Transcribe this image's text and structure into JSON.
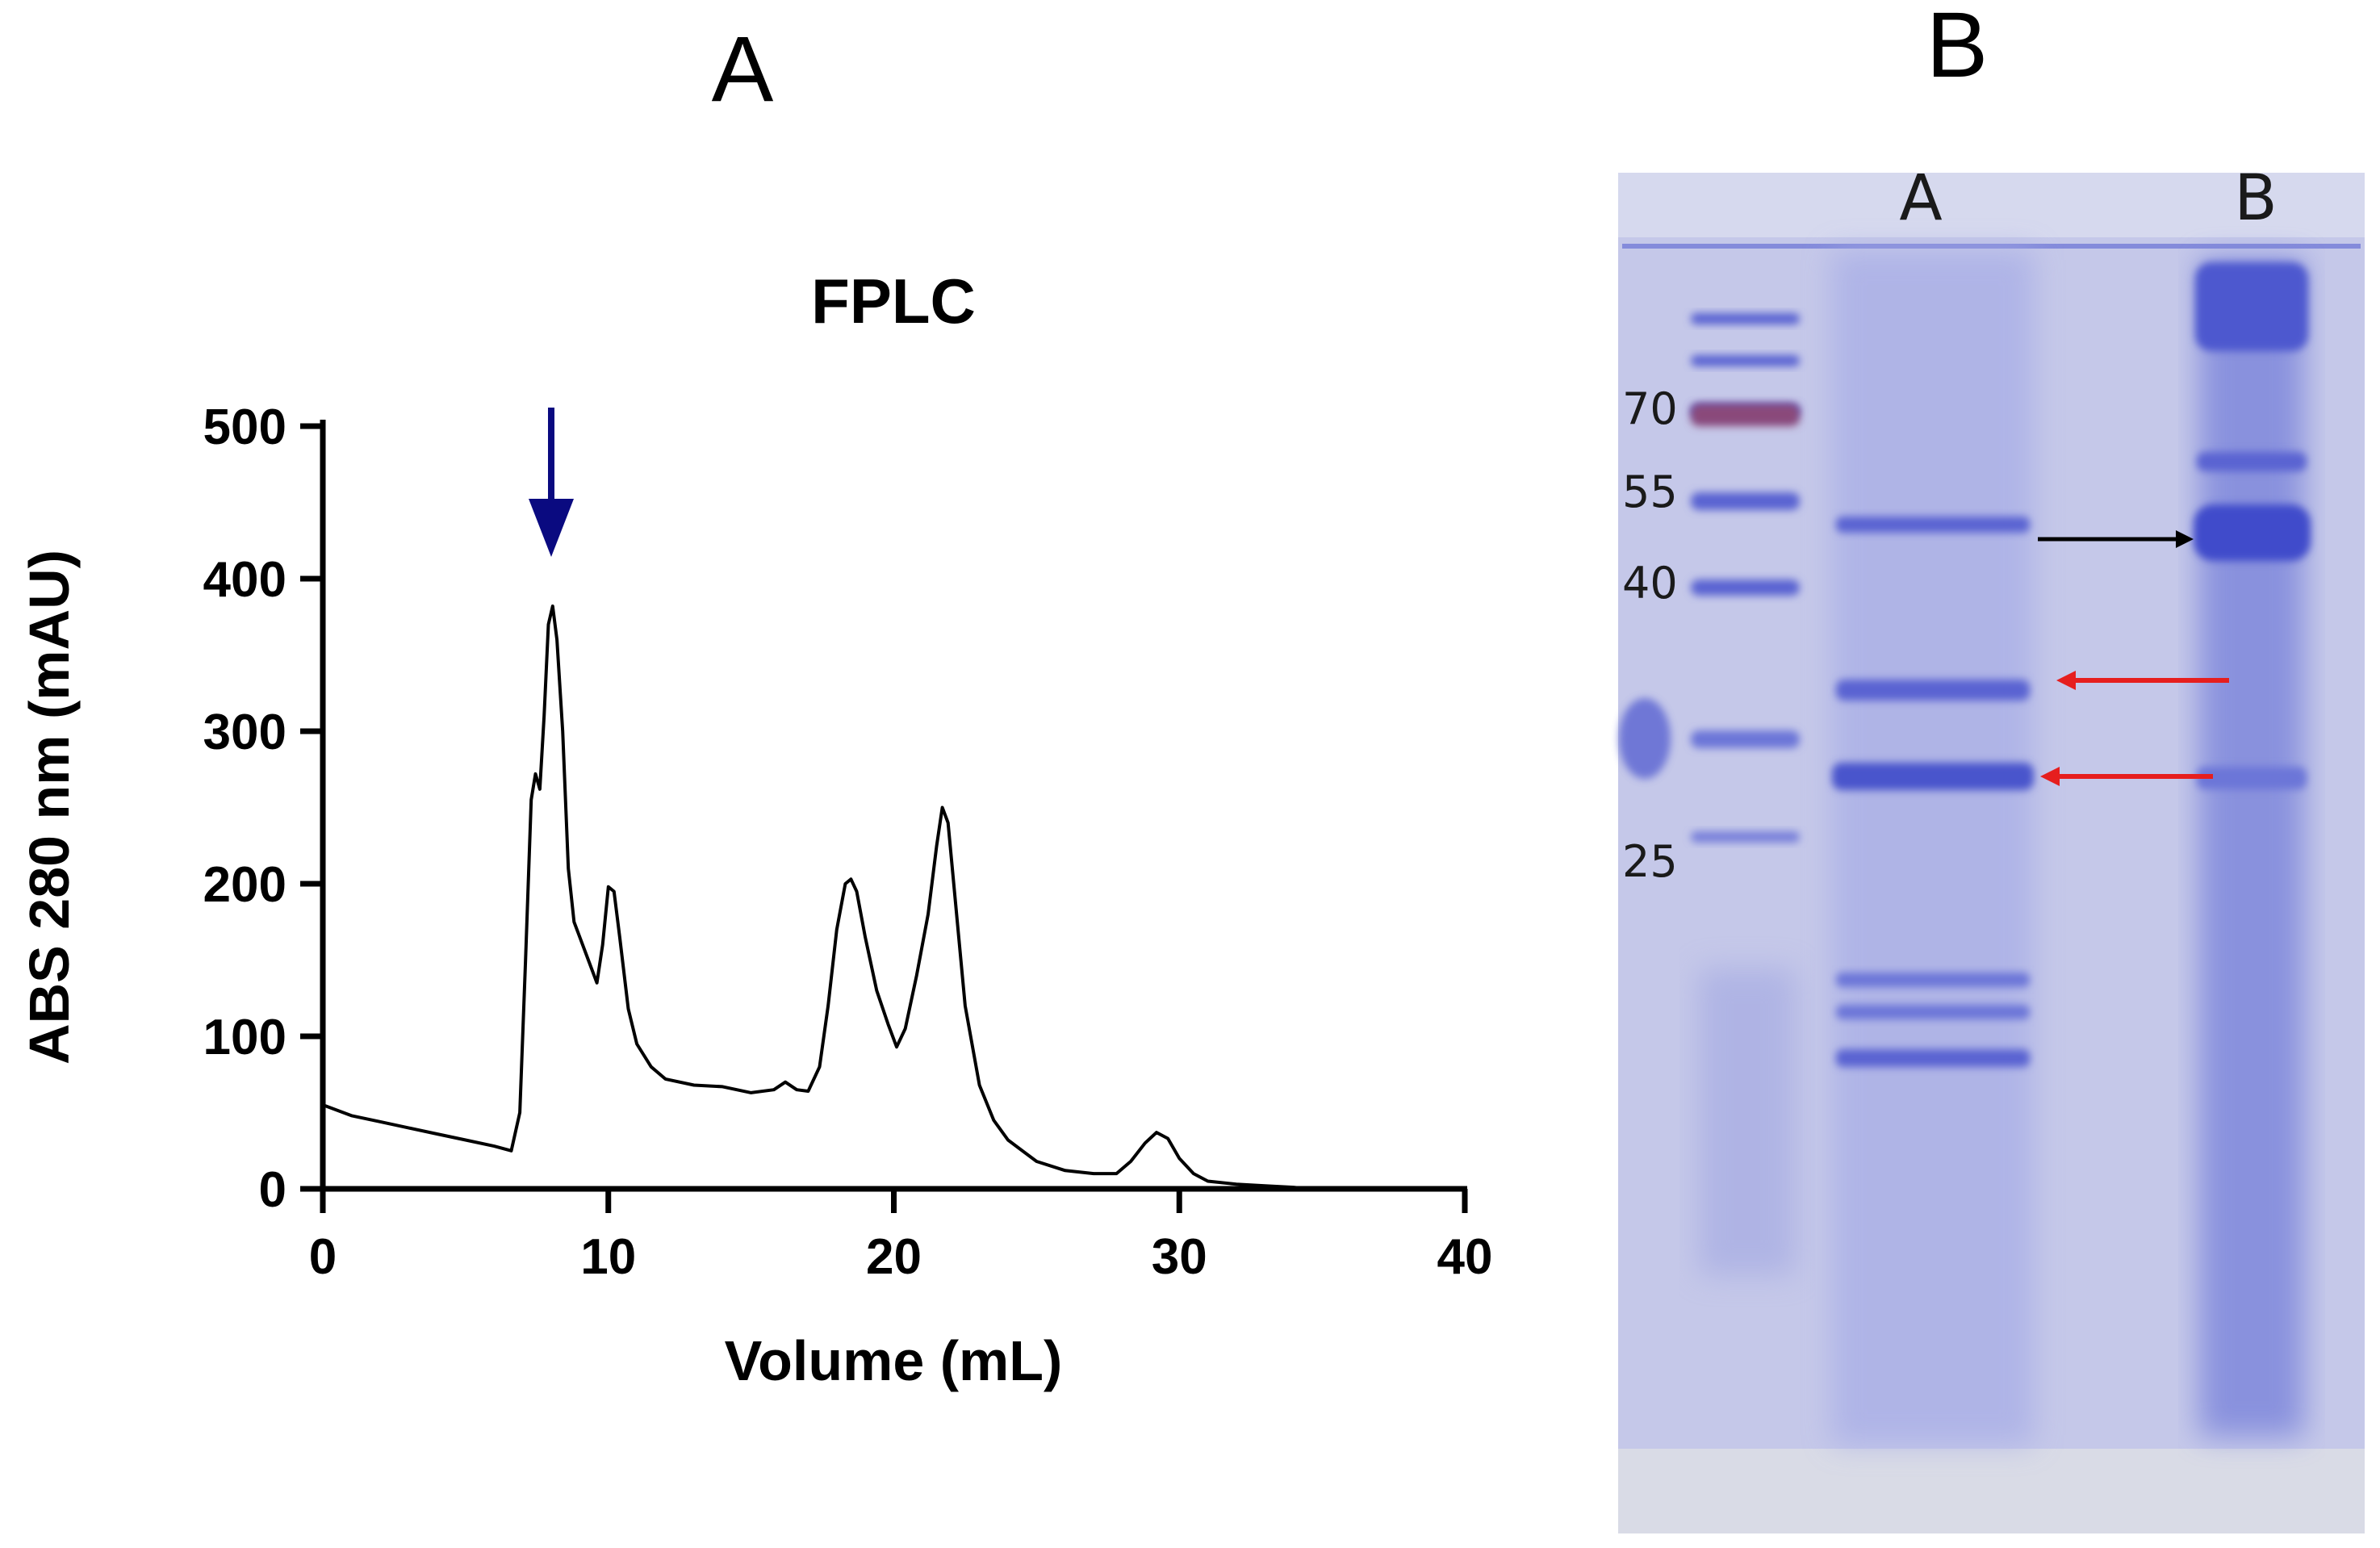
{
  "panel_a": {
    "letter": "A"
  },
  "panel_b": {
    "letter": "B",
    "lane_labels": [
      "A",
      "B"
    ],
    "marker_labels": [
      "70",
      "55",
      "40",
      "25"
    ],
    "colors": {
      "gel_background": "#c5c8e9",
      "band": "#5a64d2",
      "marker_70": "#8a4a7a",
      "black_arrow": "#000000",
      "red_arrow": "#e61e1e"
    }
  },
  "chart_data": {
    "type": "line",
    "title": "FPLC",
    "xlabel": "Volume (mL)",
    "ylabel": "ABS 280 nm (mAU)",
    "xlim": [
      0,
      40
    ],
    "ylim": [
      0,
      500
    ],
    "xticks": [
      0,
      10,
      20,
      30,
      40
    ],
    "yticks": [
      0,
      100,
      200,
      300,
      400,
      500
    ],
    "grid": false,
    "series": [
      {
        "color": "#000000",
        "points": [
          [
            0,
            55
          ],
          [
            1,
            48
          ],
          [
            2,
            44
          ],
          [
            3,
            40
          ],
          [
            4,
            36
          ],
          [
            5,
            32
          ],
          [
            6,
            28
          ],
          [
            6.6,
            25
          ],
          [
            6.9,
            50
          ],
          [
            7.1,
            150
          ],
          [
            7.3,
            255
          ],
          [
            7.45,
            272
          ],
          [
            7.6,
            262
          ],
          [
            7.75,
            310
          ],
          [
            7.9,
            370
          ],
          [
            8.05,
            382
          ],
          [
            8.2,
            360
          ],
          [
            8.4,
            300
          ],
          [
            8.6,
            210
          ],
          [
            8.8,
            175
          ],
          [
            9.0,
            165
          ],
          [
            9.3,
            150
          ],
          [
            9.6,
            135
          ],
          [
            9.8,
            160
          ],
          [
            10.0,
            198
          ],
          [
            10.2,
            195
          ],
          [
            10.4,
            165
          ],
          [
            10.7,
            118
          ],
          [
            11.0,
            95
          ],
          [
            11.5,
            80
          ],
          [
            12,
            72
          ],
          [
            13,
            68
          ],
          [
            14,
            67
          ],
          [
            15,
            63
          ],
          [
            15.8,
            65
          ],
          [
            16.2,
            70
          ],
          [
            16.6,
            65
          ],
          [
            17.0,
            64
          ],
          [
            17.4,
            80
          ],
          [
            17.7,
            120
          ],
          [
            18.0,
            170
          ],
          [
            18.3,
            200
          ],
          [
            18.5,
            203
          ],
          [
            18.7,
            195
          ],
          [
            19.0,
            165
          ],
          [
            19.4,
            130
          ],
          [
            19.8,
            108
          ],
          [
            20.1,
            93
          ],
          [
            20.4,
            105
          ],
          [
            20.8,
            140
          ],
          [
            21.2,
            180
          ],
          [
            21.5,
            225
          ],
          [
            21.7,
            250
          ],
          [
            21.9,
            240
          ],
          [
            22.2,
            180
          ],
          [
            22.5,
            120
          ],
          [
            23.0,
            68
          ],
          [
            23.5,
            45
          ],
          [
            24,
            32
          ],
          [
            25,
            18
          ],
          [
            26,
            12
          ],
          [
            27,
            10
          ],
          [
            27.8,
            10
          ],
          [
            28.3,
            18
          ],
          [
            28.8,
            30
          ],
          [
            29.2,
            37
          ],
          [
            29.6,
            33
          ],
          [
            30.0,
            20
          ],
          [
            30.5,
            10
          ],
          [
            31,
            5
          ],
          [
            32,
            3
          ],
          [
            33,
            2
          ],
          [
            34,
            1
          ],
          [
            34.5,
            0
          ]
        ]
      }
    ],
    "annotations": [
      {
        "type": "arrow-down",
        "x": 8.0,
        "color": "#0a0a80"
      }
    ]
  }
}
